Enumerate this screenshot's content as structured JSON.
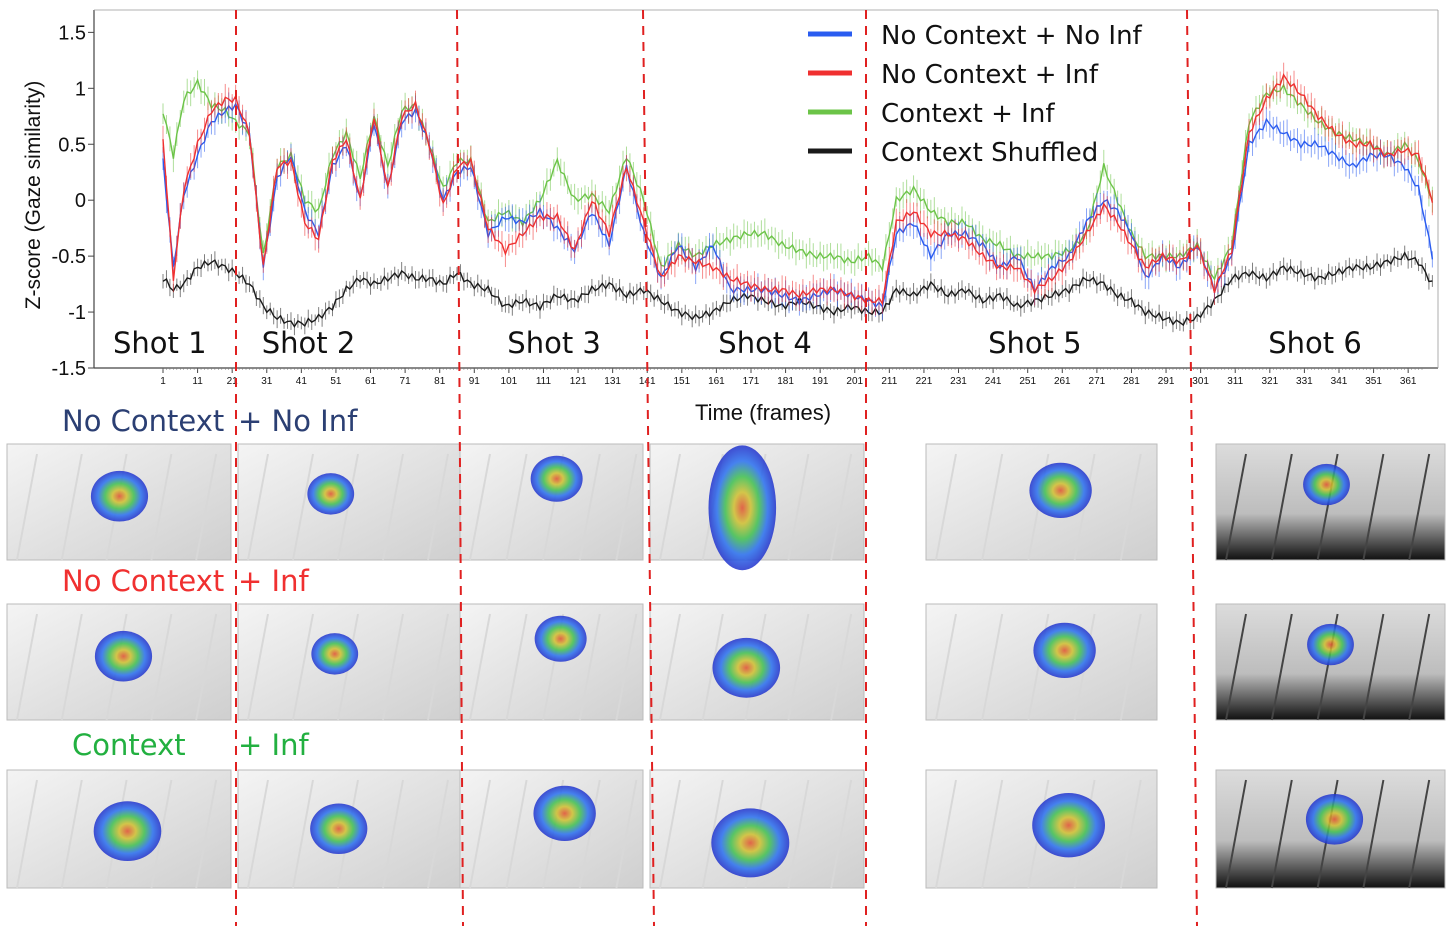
{
  "chart_data": {
    "type": "line",
    "title": "",
    "xlabel": "Time (frames)",
    "ylabel": "Z-score (Gaze similarity)",
    "xlim": [
      1,
      369
    ],
    "ylim": [
      -1.5,
      1.7
    ],
    "x_ticks": [
      1,
      11,
      21,
      31,
      41,
      51,
      61,
      71,
      81,
      91,
      101,
      111,
      121,
      131,
      141,
      151,
      161,
      171,
      181,
      191,
      201,
      211,
      221,
      231,
      241,
      251,
      261,
      271,
      281,
      291,
      301,
      311,
      321,
      331,
      341,
      351,
      361
    ],
    "y_ticks": [
      -1.5,
      -1,
      -0.5,
      0,
      0.5,
      1,
      1.5
    ],
    "y_tick_labels": [
      "-1.5",
      "-1",
      "-0.5",
      "0",
      "0.5",
      "1",
      "1.5"
    ],
    "legend_position": "top-right",
    "error_bars": true,
    "shot_boundaries": [
      22,
      88,
      143,
      209,
      300
    ],
    "shot_labels": [
      {
        "label": "Shot 1",
        "x": 1
      },
      {
        "label": "Shot 2",
        "x": 44
      },
      {
        "label": "Shot 3",
        "x": 115
      },
      {
        "label": "Shot 4",
        "x": 176
      },
      {
        "label": "Shot 5",
        "x": 254
      },
      {
        "label": "Shot 6",
        "x": 335
      }
    ],
    "series": [
      {
        "name": "No Context + No Inf",
        "color": "#2a5cf0",
        "x": [
          1,
          4,
          7,
          11,
          15,
          19,
          22,
          26,
          30,
          34,
          38,
          42,
          46,
          50,
          54,
          58,
          62,
          66,
          70,
          74,
          78,
          82,
          86,
          90,
          95,
          100,
          105,
          110,
          115,
          120,
          125,
          130,
          135,
          140,
          145,
          150,
          155,
          160,
          165,
          170,
          175,
          180,
          185,
          190,
          195,
          200,
          205,
          209,
          213,
          218,
          223,
          228,
          233,
          238,
          243,
          248,
          253,
          258,
          263,
          268,
          273,
          277,
          281,
          285,
          290,
          295,
          300,
          305,
          310,
          315,
          320,
          325,
          330,
          335,
          340,
          345,
          350,
          355,
          360,
          364,
          368
        ],
        "values": [
          0.35,
          -0.6,
          0.05,
          0.4,
          0.7,
          0.8,
          0.85,
          0.6,
          -0.6,
          0.2,
          0.4,
          -0.1,
          -0.3,
          0.3,
          0.5,
          0.0,
          0.7,
          0.1,
          0.7,
          0.8,
          0.5,
          0.0,
          0.25,
          0.3,
          -0.3,
          -0.15,
          -0.2,
          -0.1,
          -0.25,
          -0.45,
          -0.1,
          -0.4,
          0.3,
          -0.3,
          -0.7,
          -0.4,
          -0.6,
          -0.4,
          -0.8,
          -0.8,
          -0.8,
          -0.85,
          -0.9,
          -0.85,
          -0.8,
          -0.85,
          -0.9,
          -0.95,
          -0.3,
          -0.2,
          -0.5,
          -0.3,
          -0.3,
          -0.4,
          -0.6,
          -0.5,
          -0.8,
          -0.6,
          -0.5,
          -0.2,
          0.0,
          -0.1,
          -0.3,
          -0.7,
          -0.5,
          -0.6,
          -0.4,
          -0.8,
          -0.5,
          0.5,
          0.7,
          0.6,
          0.5,
          0.5,
          0.4,
          0.3,
          0.4,
          0.4,
          0.3,
          0.1,
          -0.5
        ],
        "error": 0.12
      },
      {
        "name": "No Context + Inf",
        "color": "#f03030",
        "x": [
          1,
          4,
          7,
          11,
          15,
          19,
          22,
          26,
          30,
          34,
          38,
          42,
          46,
          50,
          54,
          58,
          62,
          66,
          70,
          74,
          78,
          82,
          86,
          90,
          95,
          100,
          105,
          110,
          115,
          120,
          125,
          130,
          135,
          140,
          145,
          150,
          155,
          160,
          165,
          170,
          175,
          180,
          185,
          190,
          195,
          200,
          205,
          209,
          213,
          218,
          223,
          228,
          233,
          238,
          243,
          248,
          253,
          258,
          263,
          268,
          273,
          277,
          281,
          285,
          290,
          295,
          300,
          305,
          310,
          315,
          320,
          325,
          330,
          335,
          340,
          345,
          350,
          355,
          360,
          364,
          368
        ],
        "values": [
          0.55,
          -0.7,
          0.1,
          0.5,
          0.8,
          0.9,
          0.9,
          0.6,
          -0.6,
          0.3,
          0.35,
          -0.2,
          -0.35,
          0.35,
          0.55,
          0.0,
          0.75,
          0.1,
          0.75,
          0.85,
          0.5,
          -0.05,
          0.3,
          0.35,
          -0.25,
          -0.45,
          -0.3,
          -0.15,
          -0.15,
          -0.45,
          0.0,
          -0.3,
          0.3,
          -0.2,
          -0.7,
          -0.5,
          -0.55,
          -0.6,
          -0.7,
          -0.75,
          -0.8,
          -0.8,
          -0.85,
          -0.8,
          -0.8,
          -0.85,
          -0.9,
          -0.9,
          -0.2,
          -0.1,
          -0.3,
          -0.3,
          -0.35,
          -0.5,
          -0.6,
          -0.6,
          -0.8,
          -0.7,
          -0.55,
          -0.3,
          -0.05,
          -0.2,
          -0.4,
          -0.6,
          -0.5,
          -0.55,
          -0.4,
          -0.8,
          -0.45,
          0.6,
          0.9,
          1.1,
          0.95,
          0.75,
          0.6,
          0.5,
          0.5,
          0.4,
          0.45,
          0.4,
          0.0
        ],
        "error": 0.12
      },
      {
        "name": "Context + Inf",
        "color": "#6cc448",
        "x": [
          1,
          4,
          7,
          11,
          15,
          19,
          22,
          26,
          30,
          34,
          38,
          42,
          46,
          50,
          54,
          58,
          62,
          66,
          70,
          74,
          78,
          82,
          86,
          90,
          95,
          100,
          105,
          110,
          115,
          120,
          125,
          130,
          135,
          140,
          145,
          150,
          155,
          160,
          165,
          170,
          175,
          180,
          185,
          190,
          195,
          200,
          205,
          209,
          213,
          218,
          223,
          228,
          233,
          238,
          243,
          248,
          253,
          258,
          263,
          268,
          273,
          277,
          281,
          285,
          290,
          295,
          300,
          305,
          310,
          315,
          320,
          325,
          330,
          335,
          340,
          345,
          350,
          355,
          360,
          364,
          368
        ],
        "values": [
          0.8,
          0.4,
          0.9,
          1.05,
          0.85,
          0.8,
          0.7,
          0.6,
          -0.5,
          0.3,
          0.4,
          0.0,
          -0.1,
          0.4,
          0.6,
          0.2,
          0.75,
          0.3,
          0.8,
          0.85,
          0.5,
          0.1,
          0.35,
          0.35,
          -0.2,
          -0.1,
          -0.2,
          0.0,
          0.35,
          0.0,
          0.05,
          -0.1,
          0.4,
          0.0,
          -0.6,
          -0.4,
          -0.5,
          -0.4,
          -0.35,
          -0.3,
          -0.3,
          -0.4,
          -0.45,
          -0.5,
          -0.5,
          -0.55,
          -0.5,
          -0.6,
          0.0,
          0.1,
          -0.1,
          -0.2,
          -0.2,
          -0.35,
          -0.4,
          -0.5,
          -0.5,
          -0.5,
          -0.45,
          -0.3,
          0.3,
          0.0,
          -0.3,
          -0.5,
          -0.5,
          -0.5,
          -0.4,
          -0.7,
          -0.4,
          0.7,
          0.95,
          1.0,
          0.85,
          0.7,
          0.6,
          0.55,
          0.5,
          0.4,
          0.5,
          0.35,
          0.0
        ],
        "error": 0.12
      },
      {
        "name": "Context Shuffled",
        "color": "#1a1a1a",
        "x": [
          1,
          4,
          7,
          11,
          15,
          19,
          22,
          26,
          30,
          34,
          38,
          42,
          46,
          50,
          54,
          58,
          62,
          66,
          70,
          74,
          78,
          82,
          86,
          90,
          95,
          100,
          105,
          110,
          115,
          120,
          125,
          130,
          135,
          140,
          145,
          150,
          155,
          160,
          165,
          170,
          175,
          180,
          185,
          190,
          195,
          200,
          205,
          209,
          213,
          218,
          223,
          228,
          233,
          238,
          243,
          248,
          253,
          258,
          263,
          268,
          273,
          277,
          281,
          285,
          290,
          295,
          300,
          305,
          310,
          315,
          320,
          325,
          330,
          335,
          340,
          345,
          350,
          355,
          360,
          364,
          368
        ],
        "values": [
          -0.7,
          -0.8,
          -0.75,
          -0.6,
          -0.55,
          -0.6,
          -0.65,
          -0.75,
          -0.95,
          -1.05,
          -1.1,
          -1.1,
          -1.05,
          -0.95,
          -0.8,
          -0.7,
          -0.75,
          -0.7,
          -0.65,
          -0.7,
          -0.7,
          -0.75,
          -0.65,
          -0.75,
          -0.8,
          -0.95,
          -0.9,
          -0.95,
          -0.85,
          -0.9,
          -0.8,
          -0.75,
          -0.85,
          -0.8,
          -0.9,
          -1.0,
          -1.05,
          -1.0,
          -0.9,
          -0.85,
          -0.9,
          -0.95,
          -0.9,
          -0.95,
          -1.0,
          -0.95,
          -1.0,
          -1.0,
          -0.8,
          -0.85,
          -0.75,
          -0.85,
          -0.8,
          -0.9,
          -0.85,
          -0.95,
          -0.9,
          -0.85,
          -0.8,
          -0.7,
          -0.75,
          -0.85,
          -0.9,
          -1.0,
          -1.05,
          -1.1,
          -1.05,
          -0.9,
          -0.7,
          -0.65,
          -0.7,
          -0.6,
          -0.65,
          -0.7,
          -0.65,
          -0.6,
          -0.6,
          -0.55,
          -0.5,
          -0.55,
          -0.75
        ],
        "error": 0.08
      }
    ]
  },
  "rows": [
    {
      "label_left": "No Context",
      "label_right": "+ No Inf",
      "color": "#2b3f73"
    },
    {
      "label_left": "No Context",
      "label_right": "+ Inf",
      "color": "#f03030"
    },
    {
      "label_left": "Context",
      "label_right": "+ Inf",
      "color": "#22b040"
    }
  ]
}
